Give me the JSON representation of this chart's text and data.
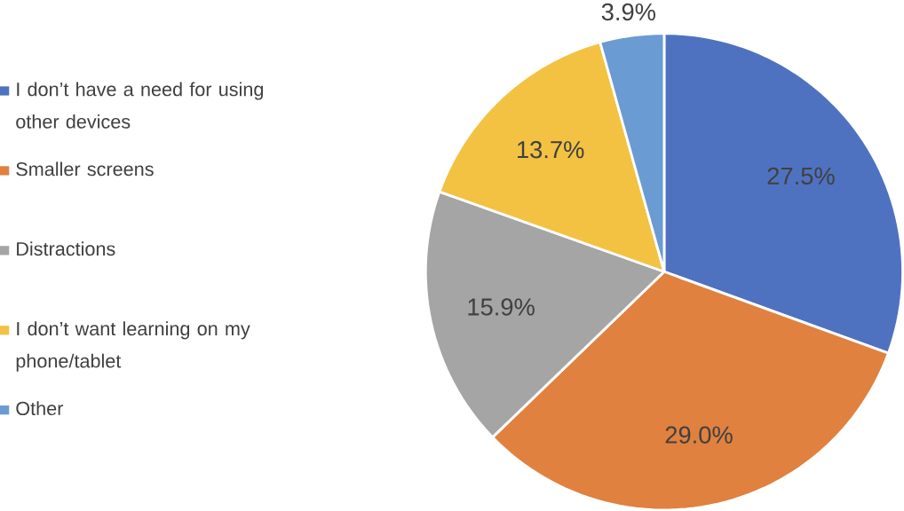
{
  "chart_data": {
    "type": "pie",
    "categories": [
      "I don’t have a need for using other devices",
      "Smaller screens",
      "Distractions",
      "I don’t want learning on my phone/tablet",
      "Other"
    ],
    "values": [
      27.5,
      29.0,
      15.9,
      13.7,
      3.9
    ],
    "colors": [
      "#4f72c0",
      "#e0813f",
      "#a5a5a5",
      "#f3c242",
      "#6a9bd3"
    ],
    "value_labels": [
      "27.5%",
      "29.0%",
      "15.9%",
      "13.7%",
      "3.9%"
    ],
    "legend": "left"
  }
}
